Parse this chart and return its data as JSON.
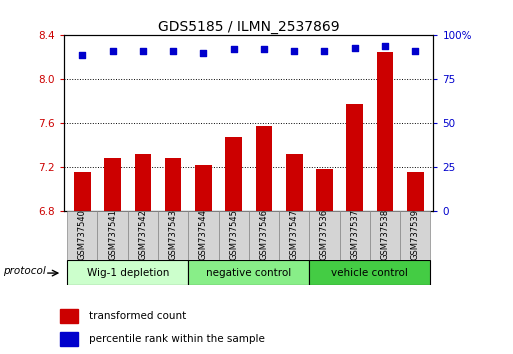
{
  "title": "GDS5185 / ILMN_2537869",
  "samples": [
    "GSM737540",
    "GSM737541",
    "GSM737542",
    "GSM737543",
    "GSM737544",
    "GSM737545",
    "GSM737546",
    "GSM737547",
    "GSM737536",
    "GSM737537",
    "GSM737538",
    "GSM737539"
  ],
  "red_values": [
    7.15,
    7.28,
    7.32,
    7.28,
    7.22,
    7.47,
    7.57,
    7.32,
    7.18,
    7.77,
    8.25,
    7.15
  ],
  "blue_values": [
    89,
    91,
    91,
    91,
    90,
    92,
    92,
    91,
    91,
    93,
    94,
    91
  ],
  "ylim_left": [
    6.8,
    8.4
  ],
  "ylim_right": [
    0,
    100
  ],
  "yticks_left": [
    6.8,
    7.2,
    7.6,
    8.0,
    8.4
  ],
  "yticks_right": [
    0,
    25,
    50,
    75,
    100
  ],
  "groups": [
    {
      "label": "Wig-1 depletion",
      "start": 0,
      "end": 3,
      "color": "#ccffcc"
    },
    {
      "label": "negative control",
      "start": 4,
      "end": 7,
      "color": "#88ee88"
    },
    {
      "label": "vehicle control",
      "start": 8,
      "end": 11,
      "color": "#44cc44"
    }
  ],
  "protocol_label": "protocol",
  "red_color": "#cc0000",
  "blue_color": "#0000cc",
  "bar_width": 0.55,
  "base_value": 6.8,
  "legend_red": "transformed count",
  "legend_blue": "percentile rank within the sample"
}
